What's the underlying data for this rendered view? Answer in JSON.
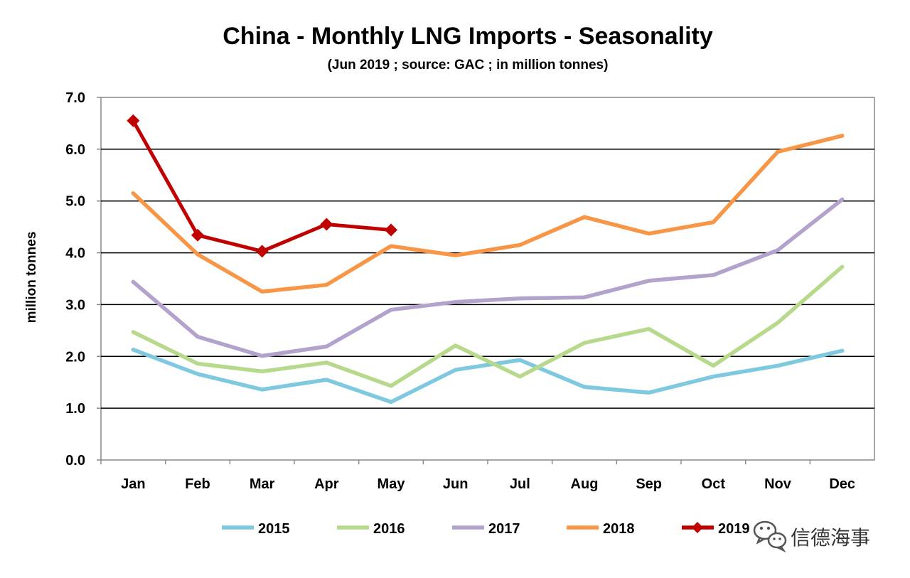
{
  "chart_data": {
    "type": "line",
    "title": "China - Monthly LNG Imports - Seasonality",
    "subtitle": "(Jun 2019 ; source: GAC ; in million tonnes)",
    "ylabel": "million tonnes",
    "xlabel": "",
    "ylim": [
      0,
      7
    ],
    "yticks": [
      "0.0",
      "1.0",
      "2.0",
      "3.0",
      "4.0",
      "5.0",
      "6.0",
      "7.0"
    ],
    "categories": [
      "Jan",
      "Feb",
      "Mar",
      "Apr",
      "May",
      "Jun",
      "Jul",
      "Aug",
      "Sep",
      "Oct",
      "Nov",
      "Dec"
    ],
    "grid": true,
    "legend_position": "bottom",
    "series": [
      {
        "name": "2015",
        "color": "#7ec8e0",
        "marker": "none",
        "values": [
          2.13,
          1.66,
          1.36,
          1.55,
          1.12,
          1.74,
          1.93,
          1.41,
          1.3,
          1.61,
          1.82,
          2.11
        ]
      },
      {
        "name": "2016",
        "color": "#b7d98b",
        "marker": "none",
        "values": [
          2.47,
          1.86,
          1.71,
          1.88,
          1.43,
          2.21,
          1.61,
          2.26,
          2.53,
          1.82,
          2.65,
          3.73
        ]
      },
      {
        "name": "2017",
        "color": "#b3a2cc",
        "marker": "none",
        "values": [
          3.44,
          2.38,
          2.01,
          2.19,
          2.9,
          3.05,
          3.12,
          3.14,
          3.46,
          3.57,
          4.05,
          5.03
        ]
      },
      {
        "name": "2018",
        "color": "#f79646",
        "marker": "none",
        "values": [
          5.15,
          3.97,
          3.25,
          3.38,
          4.13,
          3.95,
          4.15,
          4.69,
          4.37,
          4.59,
          5.95,
          6.26
        ]
      },
      {
        "name": "2019",
        "color": "#c00000",
        "marker": "diamond",
        "values": [
          6.55,
          4.34,
          4.03,
          4.55,
          4.44,
          null,
          null,
          null,
          null,
          null,
          null,
          null
        ]
      }
    ]
  },
  "watermark": {
    "text": "信德海事",
    "icon": "wechat-icon"
  }
}
